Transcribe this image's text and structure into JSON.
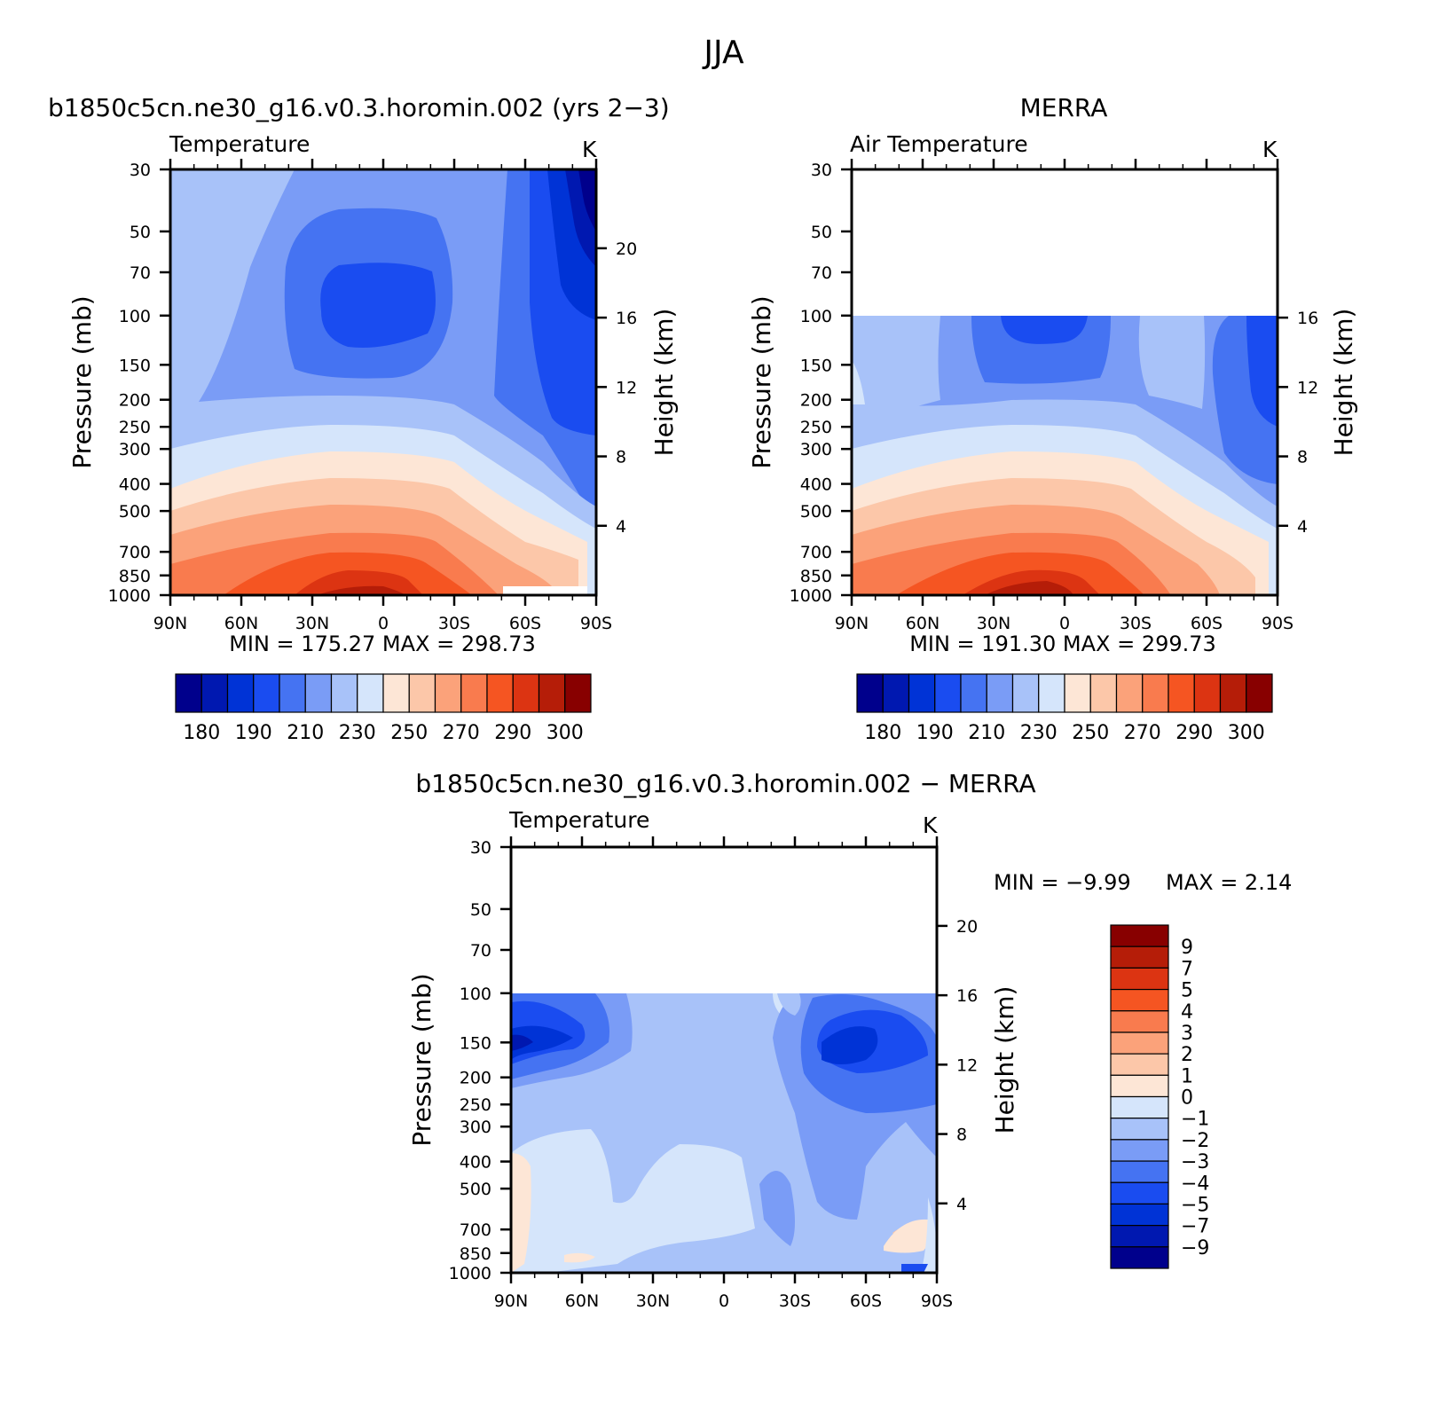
{
  "figure": {
    "title": "JJA"
  },
  "colors": {
    "temperature_scale": [
      "#00008c",
      "#0018b0",
      "#0033d6",
      "#1a4cf0",
      "#4573f2",
      "#7a9cf6",
      "#a8c2f9",
      "#d5e5fb",
      "#fde6d6",
      "#fcc7a9",
      "#fba27a",
      "#f97b4e",
      "#f55522",
      "#dc3412",
      "#b51d08",
      "#880000"
    ],
    "difference_scale": [
      "#00008c",
      "#0018b0",
      "#0033d6",
      "#1a4cf0",
      "#4573f2",
      "#7a9cf6",
      "#a8c2f9",
      "#d5e5fb",
      "#fde6d6",
      "#fcc7a9",
      "#fba27a",
      "#f97b4e",
      "#f55522",
      "#dc3412",
      "#b51d08",
      "#880000"
    ]
  },
  "panels": {
    "model": {
      "title": "b1850c5cn.ne30_g16.v0.3.horomin.002 (yrs 2−3)",
      "field_label": "Temperature",
      "units": "K",
      "minmax": "MIN =  175.27   MAX =  298.73",
      "colorbar_labels": [
        "180",
        "190",
        "210",
        "230",
        "250",
        "270",
        "290",
        "300"
      ]
    },
    "obs": {
      "title": "MERRA",
      "field_label": "Air Temperature",
      "units": "K",
      "minmax": "MIN =  191.30   MAX =  299.73",
      "colorbar_labels": [
        "180",
        "190",
        "210",
        "230",
        "250",
        "270",
        "290",
        "300"
      ]
    },
    "diff": {
      "title": "b1850c5cn.ne30_g16.v0.3.horomin.002 − MERRA",
      "field_label": "Temperature",
      "units": "K",
      "min_text": "MIN =    −9.99",
      "max_text": "MAX =     2.14",
      "colorbar_labels": [
        "9",
        "7",
        "5",
        "4",
        "3",
        "2",
        "1",
        "0",
        "−1",
        "−2",
        "−3",
        "−4",
        "−5",
        "−7",
        "−9"
      ]
    }
  },
  "axes": {
    "ylabel_left": "Pressure (mb)",
    "ylabel_right": "Height (km)",
    "pressure_ticks": [
      "30",
      "50",
      "70",
      "100",
      "150",
      "200",
      "250",
      "300",
      "400",
      "500",
      "700",
      "850",
      "1000"
    ],
    "height_ticks": [
      "20",
      "16",
      "12",
      "8",
      "4"
    ],
    "lat_ticks": [
      "90N",
      "60N",
      "30N",
      "0",
      "30S",
      "60S",
      "90S"
    ]
  },
  "chart_data": [
    {
      "type": "heatmap",
      "title": "b1850c5cn.ne30_g16.v0.3.horomin.002 (yrs 2−3)",
      "subtitle": "Temperature",
      "units": "K",
      "xlabel": "",
      "ylabel": "Pressure (mb)",
      "ylabel_right": "Height (km)",
      "x": [
        "90N",
        "60N",
        "30N",
        "0",
        "30S",
        "60S",
        "90S"
      ],
      "xlim": [
        90,
        -90
      ],
      "ylim": [
        1000,
        30
      ],
      "y_scale": "log",
      "min": 175.27,
      "max": 298.73,
      "contour_levels": [
        180,
        185,
        190,
        200,
        210,
        220,
        230,
        240,
        250,
        260,
        270,
        280,
        290,
        295,
        300
      ],
      "series": [
        {
          "name": "1000 mb",
          "x": [
            90,
            60,
            30,
            0,
            -30,
            -60,
            -90
          ],
          "values": [
            275,
            285,
            295,
            297,
            293,
            280,
            250
          ]
        },
        {
          "name": "700 mb",
          "x": [
            90,
            60,
            30,
            0,
            -30,
            -60,
            -90
          ],
          "values": [
            265,
            272,
            281,
            283,
            278,
            263,
            245
          ]
        },
        {
          "name": "500 mb",
          "x": [
            90,
            60,
            30,
            0,
            -30,
            -60,
            -90
          ],
          "values": [
            250,
            258,
            267,
            269,
            262,
            246,
            235
          ]
        },
        {
          "name": "300 mb",
          "x": [
            90,
            60,
            30,
            0,
            -30,
            -60,
            -90
          ],
          "values": [
            230,
            236,
            243,
            245,
            238,
            226,
            220
          ]
        },
        {
          "name": "200 mb",
          "x": [
            90,
            60,
            30,
            0,
            -30,
            -60,
            -90
          ],
          "values": [
            225,
            220,
            220,
            218,
            218,
            215,
            200
          ]
        },
        {
          "name": "100 mb",
          "x": [
            90,
            60,
            30,
            0,
            -30,
            -60,
            -90
          ],
          "values": [
            228,
            218,
            202,
            195,
            203,
            205,
            193
          ]
        },
        {
          "name": "50 mb",
          "x": [
            90,
            60,
            30,
            0,
            -30,
            -60,
            -90
          ],
          "values": [
            230,
            222,
            210,
            205,
            210,
            198,
            182
          ]
        },
        {
          "name": "30 mb",
          "x": [
            90,
            60,
            30,
            0,
            -30,
            -60,
            -90
          ],
          "values": [
            232,
            226,
            220,
            218,
            218,
            195,
            178
          ]
        }
      ],
      "colorbar_labels": [
        "180",
        "190",
        "210",
        "230",
        "250",
        "270",
        "290",
        "300"
      ]
    },
    {
      "type": "heatmap",
      "title": "MERRA",
      "subtitle": "Air Temperature",
      "units": "K",
      "xlabel": "",
      "ylabel": "Pressure (mb)",
      "ylabel_right": "Height (km)",
      "x": [
        "90N",
        "60N",
        "30N",
        "0",
        "30S",
        "60S",
        "90S"
      ],
      "xlim": [
        90,
        -90
      ],
      "ylim": [
        1000,
        30
      ],
      "y_scale": "log",
      "data_top_pressure": 100,
      "min": 191.3,
      "max": 299.73,
      "contour_levels": [
        180,
        185,
        190,
        200,
        210,
        220,
        230,
        240,
        250,
        260,
        270,
        280,
        290,
        295,
        300
      ],
      "series": [
        {
          "name": "1000 mb",
          "x": [
            90,
            60,
            30,
            0,
            -30,
            -60,
            -90
          ],
          "values": [
            276,
            287,
            297,
            298,
            294,
            282,
            255
          ]
        },
        {
          "name": "700 mb",
          "x": [
            90,
            60,
            30,
            0,
            -30,
            -60,
            -90
          ],
          "values": [
            266,
            273,
            282,
            284,
            279,
            265,
            248
          ]
        },
        {
          "name": "500 mb",
          "x": [
            90,
            60,
            30,
            0,
            -30,
            -60,
            -90
          ],
          "values": [
            251,
            259,
            268,
            270,
            263,
            247,
            237
          ]
        },
        {
          "name": "300 mb",
          "x": [
            90,
            60,
            30,
            0,
            -30,
            -60,
            -90
          ],
          "values": [
            231,
            237,
            244,
            246,
            239,
            228,
            221
          ]
        },
        {
          "name": "200 mb",
          "x": [
            90,
            60,
            30,
            0,
            -30,
            -60,
            -90
          ],
          "values": [
            228,
            224,
            218,
            214,
            217,
            223,
            205
          ]
        },
        {
          "name": "100 mb",
          "x": [
            90,
            60,
            30,
            0,
            -30,
            -60,
            -90
          ],
          "values": [
            226,
            222,
            205,
            195,
            205,
            222,
            200
          ]
        }
      ],
      "colorbar_labels": [
        "180",
        "190",
        "210",
        "230",
        "250",
        "270",
        "290",
        "300"
      ]
    },
    {
      "type": "heatmap",
      "title": "b1850c5cn.ne30_g16.v0.3.horomin.002 − MERRA",
      "subtitle": "Temperature",
      "units": "K",
      "xlabel": "",
      "ylabel": "Pressure (mb)",
      "ylabel_right": "Height (km)",
      "x": [
        "90N",
        "60N",
        "30N",
        "0",
        "30S",
        "60S",
        "90S"
      ],
      "xlim": [
        90,
        -90
      ],
      "ylim": [
        1000,
        30
      ],
      "y_scale": "log",
      "data_top_pressure": 100,
      "min": -9.99,
      "max": 2.14,
      "contour_levels": [
        -9,
        -7,
        -5,
        -4,
        -3,
        -2,
        -1,
        0,
        1,
        2,
        3,
        4,
        5,
        7,
        9
      ],
      "series": [
        {
          "name": "1000 mb",
          "x": [
            90,
            60,
            30,
            0,
            -30,
            -60,
            -90
          ],
          "values": [
            0.3,
            -0.5,
            -1.5,
            -1.2,
            -2.5,
            -1.5,
            -4
          ]
        },
        {
          "name": "700 mb",
          "x": [
            90,
            60,
            30,
            0,
            -30,
            -60,
            -90
          ],
          "values": [
            0.5,
            -0.5,
            -0.5,
            -0.8,
            -2.5,
            -2.5,
            0.5
          ]
        },
        {
          "name": "500 mb",
          "x": [
            90,
            60,
            30,
            0,
            -30,
            -60,
            -90
          ],
          "values": [
            0.3,
            -0.8,
            -1.5,
            -0.8,
            -1.5,
            -2.5,
            -1.5
          ]
        },
        {
          "name": "300 mb",
          "x": [
            90,
            60,
            30,
            0,
            -30,
            -60,
            -90
          ],
          "values": [
            -4,
            -1.5,
            -1.5,
            -1.5,
            -2,
            -3,
            -2
          ]
        },
        {
          "name": "200 mb",
          "x": [
            90,
            60,
            30,
            0,
            -30,
            -60,
            -90
          ],
          "values": [
            -9,
            -5.5,
            -2,
            -1.5,
            -3,
            -7,
            -4
          ]
        },
        {
          "name": "150 mb",
          "x": [
            90,
            60,
            30,
            0,
            -30,
            -60,
            -90
          ],
          "values": [
            -5,
            -5,
            -2,
            -1.5,
            -3,
            -6,
            -4
          ]
        },
        {
          "name": "100 mb",
          "x": [
            90,
            60,
            30,
            0,
            -30,
            -60,
            -90
          ],
          "values": [
            -3,
            -3,
            -2,
            -1.5,
            -0.8,
            -4,
            -3
          ]
        }
      ],
      "colorbar_labels": [
        "9",
        "7",
        "5",
        "4",
        "3",
        "2",
        "1",
        "0",
        "−1",
        "−2",
        "−3",
        "−4",
        "−5",
        "−7",
        "−9"
      ]
    }
  ]
}
